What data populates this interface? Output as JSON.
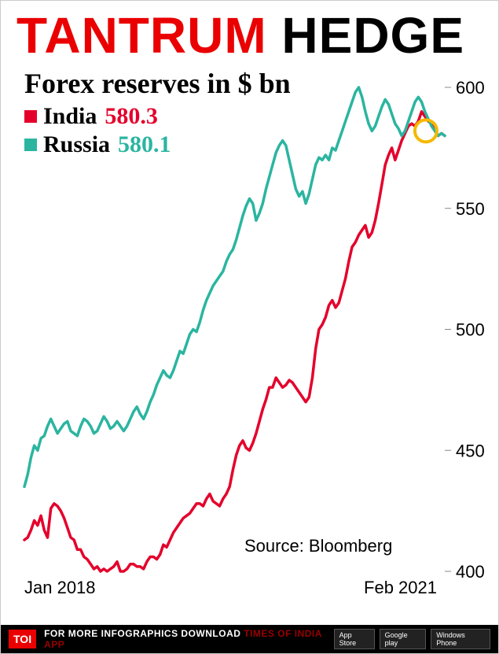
{
  "title": {
    "word1": "TANTRUM",
    "word2": "HEDGE",
    "accent_color": "#ea0000",
    "second_color": "#000000",
    "fontsize": 64
  },
  "subtitle": "Forex reserves in $ bn",
  "legend": [
    {
      "label": "India",
      "value": "580.3",
      "color": "#e4002b"
    },
    {
      "label": "Russia",
      "value": "580.1",
      "color": "#2bb5a0"
    }
  ],
  "chart": {
    "type": "line",
    "ylim": [
      400,
      600
    ],
    "yticks": [
      400,
      450,
      500,
      550,
      600
    ],
    "ytick_fontsize": 22,
    "xlabels": {
      "start": "Jan 2018",
      "end": "Feb 2021",
      "fontsize": 22
    },
    "line_width": 3.5,
    "grid_color": "#888888",
    "background_color": "#ffffff",
    "highlight_circle": {
      "cx_ratio": 0.955,
      "value": 582,
      "r": 14,
      "stroke": "#f5b800"
    },
    "series": [
      {
        "name": "India",
        "color": "#e4002b",
        "values": [
          413,
          414,
          417,
          421,
          419,
          423,
          417,
          414,
          426,
          428,
          427,
          425,
          422,
          418,
          414,
          413,
          409,
          409,
          406,
          405,
          403,
          401,
          402,
          400,
          401,
          400,
          401,
          402,
          404,
          400,
          400,
          401,
          403,
          403,
          402,
          402,
          401,
          404,
          406,
          406,
          405,
          407,
          411,
          410,
          413,
          416,
          418,
          420,
          422,
          423,
          424,
          426,
          428,
          428,
          427,
          430,
          432,
          429,
          428,
          427,
          430,
          432,
          435,
          442,
          448,
          452,
          454,
          451,
          450,
          453,
          457,
          462,
          467,
          471,
          476,
          476,
          480,
          478,
          476,
          477,
          479,
          478,
          476,
          474,
          472,
          470,
          472,
          480,
          492,
          500,
          502,
          505,
          510,
          512,
          509,
          511,
          516,
          521,
          528,
          534,
          536,
          539,
          541,
          543,
          538,
          540,
          545,
          552,
          560,
          568,
          572,
          575,
          570,
          574,
          578,
          581,
          584,
          585,
          584,
          586,
          590,
          588,
          586,
          585,
          582,
          580,
          581,
          580
        ]
      },
      {
        "name": "Russia",
        "color": "#2bb5a0",
        "values": [
          435,
          440,
          447,
          452,
          450,
          455,
          456,
          460,
          463,
          460,
          457,
          459,
          461,
          462,
          458,
          457,
          456,
          460,
          463,
          462,
          460,
          457,
          458,
          461,
          464,
          462,
          459,
          460,
          462,
          460,
          458,
          460,
          463,
          466,
          468,
          465,
          463,
          466,
          470,
          473,
          477,
          480,
          483,
          481,
          480,
          483,
          487,
          491,
          490,
          494,
          498,
          500,
          499,
          503,
          508,
          512,
          515,
          518,
          520,
          522,
          524,
          528,
          531,
          533,
          537,
          542,
          547,
          551,
          554,
          552,
          545,
          548,
          552,
          558,
          563,
          568,
          573,
          576,
          578,
          576,
          570,
          564,
          558,
          555,
          557,
          552,
          556,
          562,
          568,
          571,
          570,
          572,
          570,
          575,
          574,
          578,
          582,
          586,
          590,
          594,
          598,
          600,
          596,
          590,
          585,
          582,
          584,
          588,
          592,
          595,
          593,
          589,
          585,
          583,
          580,
          582,
          586,
          590,
          594,
          596,
          594,
          590,
          587,
          584,
          582,
          580,
          581,
          580
        ]
      }
    ]
  },
  "source": "Source: Bloomberg",
  "footer": {
    "logo": "TOI",
    "text": "FOR MORE  INFOGRAPHICS DOWNLOAD",
    "app_highlight": "TIMES OF INDIA  APP",
    "apps": [
      "App Store",
      "Google play",
      "Windows Phone"
    ]
  }
}
